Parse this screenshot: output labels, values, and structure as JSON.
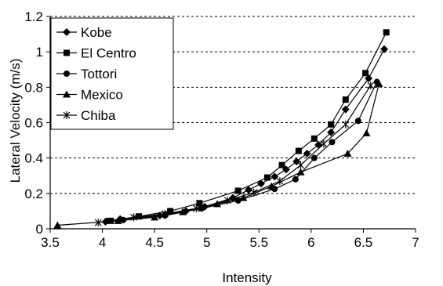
{
  "chart_data": {
    "type": "line",
    "xlabel": "Intensity",
    "ylabel": "Lateral Velocity (m/s)",
    "xlim": [
      3.5,
      7
    ],
    "ylim": [
      0,
      1.2
    ],
    "x_ticks": [
      "3.5",
      "4",
      "4.5",
      "5",
      "5.5",
      "6",
      "6.5",
      "7"
    ],
    "y_ticks": [
      "0",
      "0.2",
      "0.4",
      "0.6",
      "0.8",
      "1",
      "1.2"
    ],
    "grid": "horizontal dashed",
    "legend_position": "top-left",
    "series": [
      {
        "name": "Kobe",
        "marker": "diamond",
        "points": [
          [
            4.03,
            0.04
          ],
          [
            4.17,
            0.055
          ],
          [
            4.55,
            0.075
          ],
          [
            4.8,
            0.1
          ],
          [
            4.98,
            0.125
          ],
          [
            5.25,
            0.175
          ],
          [
            5.4,
            0.22
          ],
          [
            5.52,
            0.255
          ],
          [
            5.65,
            0.295
          ],
          [
            5.76,
            0.335
          ],
          [
            5.86,
            0.38
          ],
          [
            5.96,
            0.425
          ],
          [
            6.07,
            0.475
          ],
          [
            6.19,
            0.545
          ],
          [
            6.33,
            0.675
          ],
          [
            6.55,
            0.85
          ],
          [
            6.7,
            1.015
          ]
        ]
      },
      {
        "name": "El Centro",
        "marker": "square",
        "points": [
          [
            4.08,
            0.045
          ],
          [
            4.35,
            0.07
          ],
          [
            4.65,
            0.1
          ],
          [
            4.93,
            0.145
          ],
          [
            5.3,
            0.215
          ],
          [
            5.58,
            0.29
          ],
          [
            5.72,
            0.36
          ],
          [
            5.88,
            0.44
          ],
          [
            6.03,
            0.51
          ],
          [
            6.19,
            0.59
          ],
          [
            6.33,
            0.73
          ],
          [
            6.52,
            0.88
          ],
          [
            6.72,
            1.11
          ]
        ]
      },
      {
        "name": "Tottori",
        "marker": "circle",
        "points": [
          [
            4.05,
            0.045
          ],
          [
            4.2,
            0.05
          ],
          [
            4.6,
            0.075
          ],
          [
            4.95,
            0.115
          ],
          [
            5.3,
            0.16
          ],
          [
            5.65,
            0.225
          ],
          [
            5.85,
            0.28
          ],
          [
            6.03,
            0.4
          ],
          [
            6.2,
            0.49
          ],
          [
            6.45,
            0.61
          ],
          [
            6.63,
            0.83
          ]
        ]
      },
      {
        "name": "Mexico",
        "marker": "triangle",
        "points": [
          [
            3.57,
            0.02
          ],
          [
            4.15,
            0.045
          ],
          [
            4.5,
            0.065
          ],
          [
            4.77,
            0.095
          ],
          [
            5.1,
            0.14
          ],
          [
            5.35,
            0.175
          ],
          [
            5.62,
            0.24
          ],
          [
            5.9,
            0.32
          ],
          [
            6.35,
            0.425
          ],
          [
            6.53,
            0.54
          ],
          [
            6.65,
            0.82
          ]
        ]
      },
      {
        "name": "Chiba",
        "marker": "asterisk",
        "points": [
          [
            3.96,
            0.035
          ],
          [
            4.3,
            0.065
          ],
          [
            4.6,
            0.085
          ],
          [
            4.9,
            0.115
          ],
          [
            5.2,
            0.16
          ],
          [
            5.45,
            0.205
          ],
          [
            5.7,
            0.27
          ],
          [
            5.9,
            0.36
          ],
          [
            6.12,
            0.48
          ],
          [
            6.33,
            0.59
          ],
          [
            6.57,
            0.81
          ]
        ]
      }
    ]
  }
}
